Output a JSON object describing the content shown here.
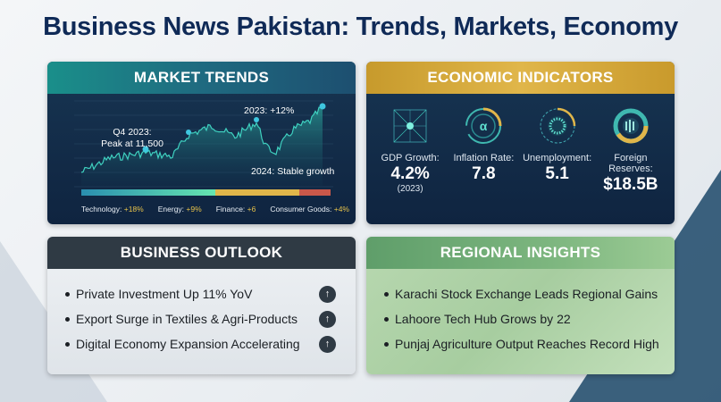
{
  "title": "Business News Pakistan: Trends, Markets, Economy",
  "market_trends": {
    "header": "MARKET TRENDS",
    "annotations": {
      "peak_line1": "Q4 2023:",
      "peak_line2": "Peak at 11,500",
      "growth": "2023: +12%",
      "stable": "2024: Stable growth"
    },
    "legend": [
      {
        "label": "Technology: ",
        "value": "+18%",
        "color": "#3ec9b0"
      },
      {
        "label": "Energy: ",
        "value": "+9%",
        "color": "#6fe0b0"
      },
      {
        "label": "Finance: ",
        "value": "+6",
        "color": "#e0b64a"
      },
      {
        "label": "Consumer Goods: ",
        "value": "+4%",
        "color": "#c9584a"
      }
    ],
    "colors": {
      "line": "#3fd1c0",
      "area": "#1f7c78",
      "highlight": "#e0b64a",
      "negative": "#c9584a"
    }
  },
  "economic_indicators": {
    "header": "ECONOMIC INDICATORS",
    "items": [
      {
        "label": "GDP Growth:",
        "value": "4.2%",
        "sub": "(2023)",
        "icon": "network-icon"
      },
      {
        "label": "Inflation Rate:",
        "value": "7.8",
        "icon": "gauge-ring-icon"
      },
      {
        "label": "Unemployment:",
        "value": "5.1",
        "icon": "dotted-ring-icon"
      },
      {
        "label": "Foreign Reserves:",
        "value": "$18.5B",
        "icon": "donut-icon"
      }
    ]
  },
  "business_outlook": {
    "header": "BUSINESS OUTLOOK",
    "items": [
      "Private Investment Up 11% YoV",
      "Export Surge in Textiles & Agri-Products",
      "Digital Economy Expansion Accelerating"
    ],
    "icon": "arrow-up-icon"
  },
  "regional_insights": {
    "header": "REGIONAL INSIGHTS",
    "items": [
      "Karachi Stock Exchange Leads Regional Gains",
      "Lahoore Tech Hub Grows by 22",
      "Punjaj Agriculture Output Reaches Record High"
    ]
  }
}
